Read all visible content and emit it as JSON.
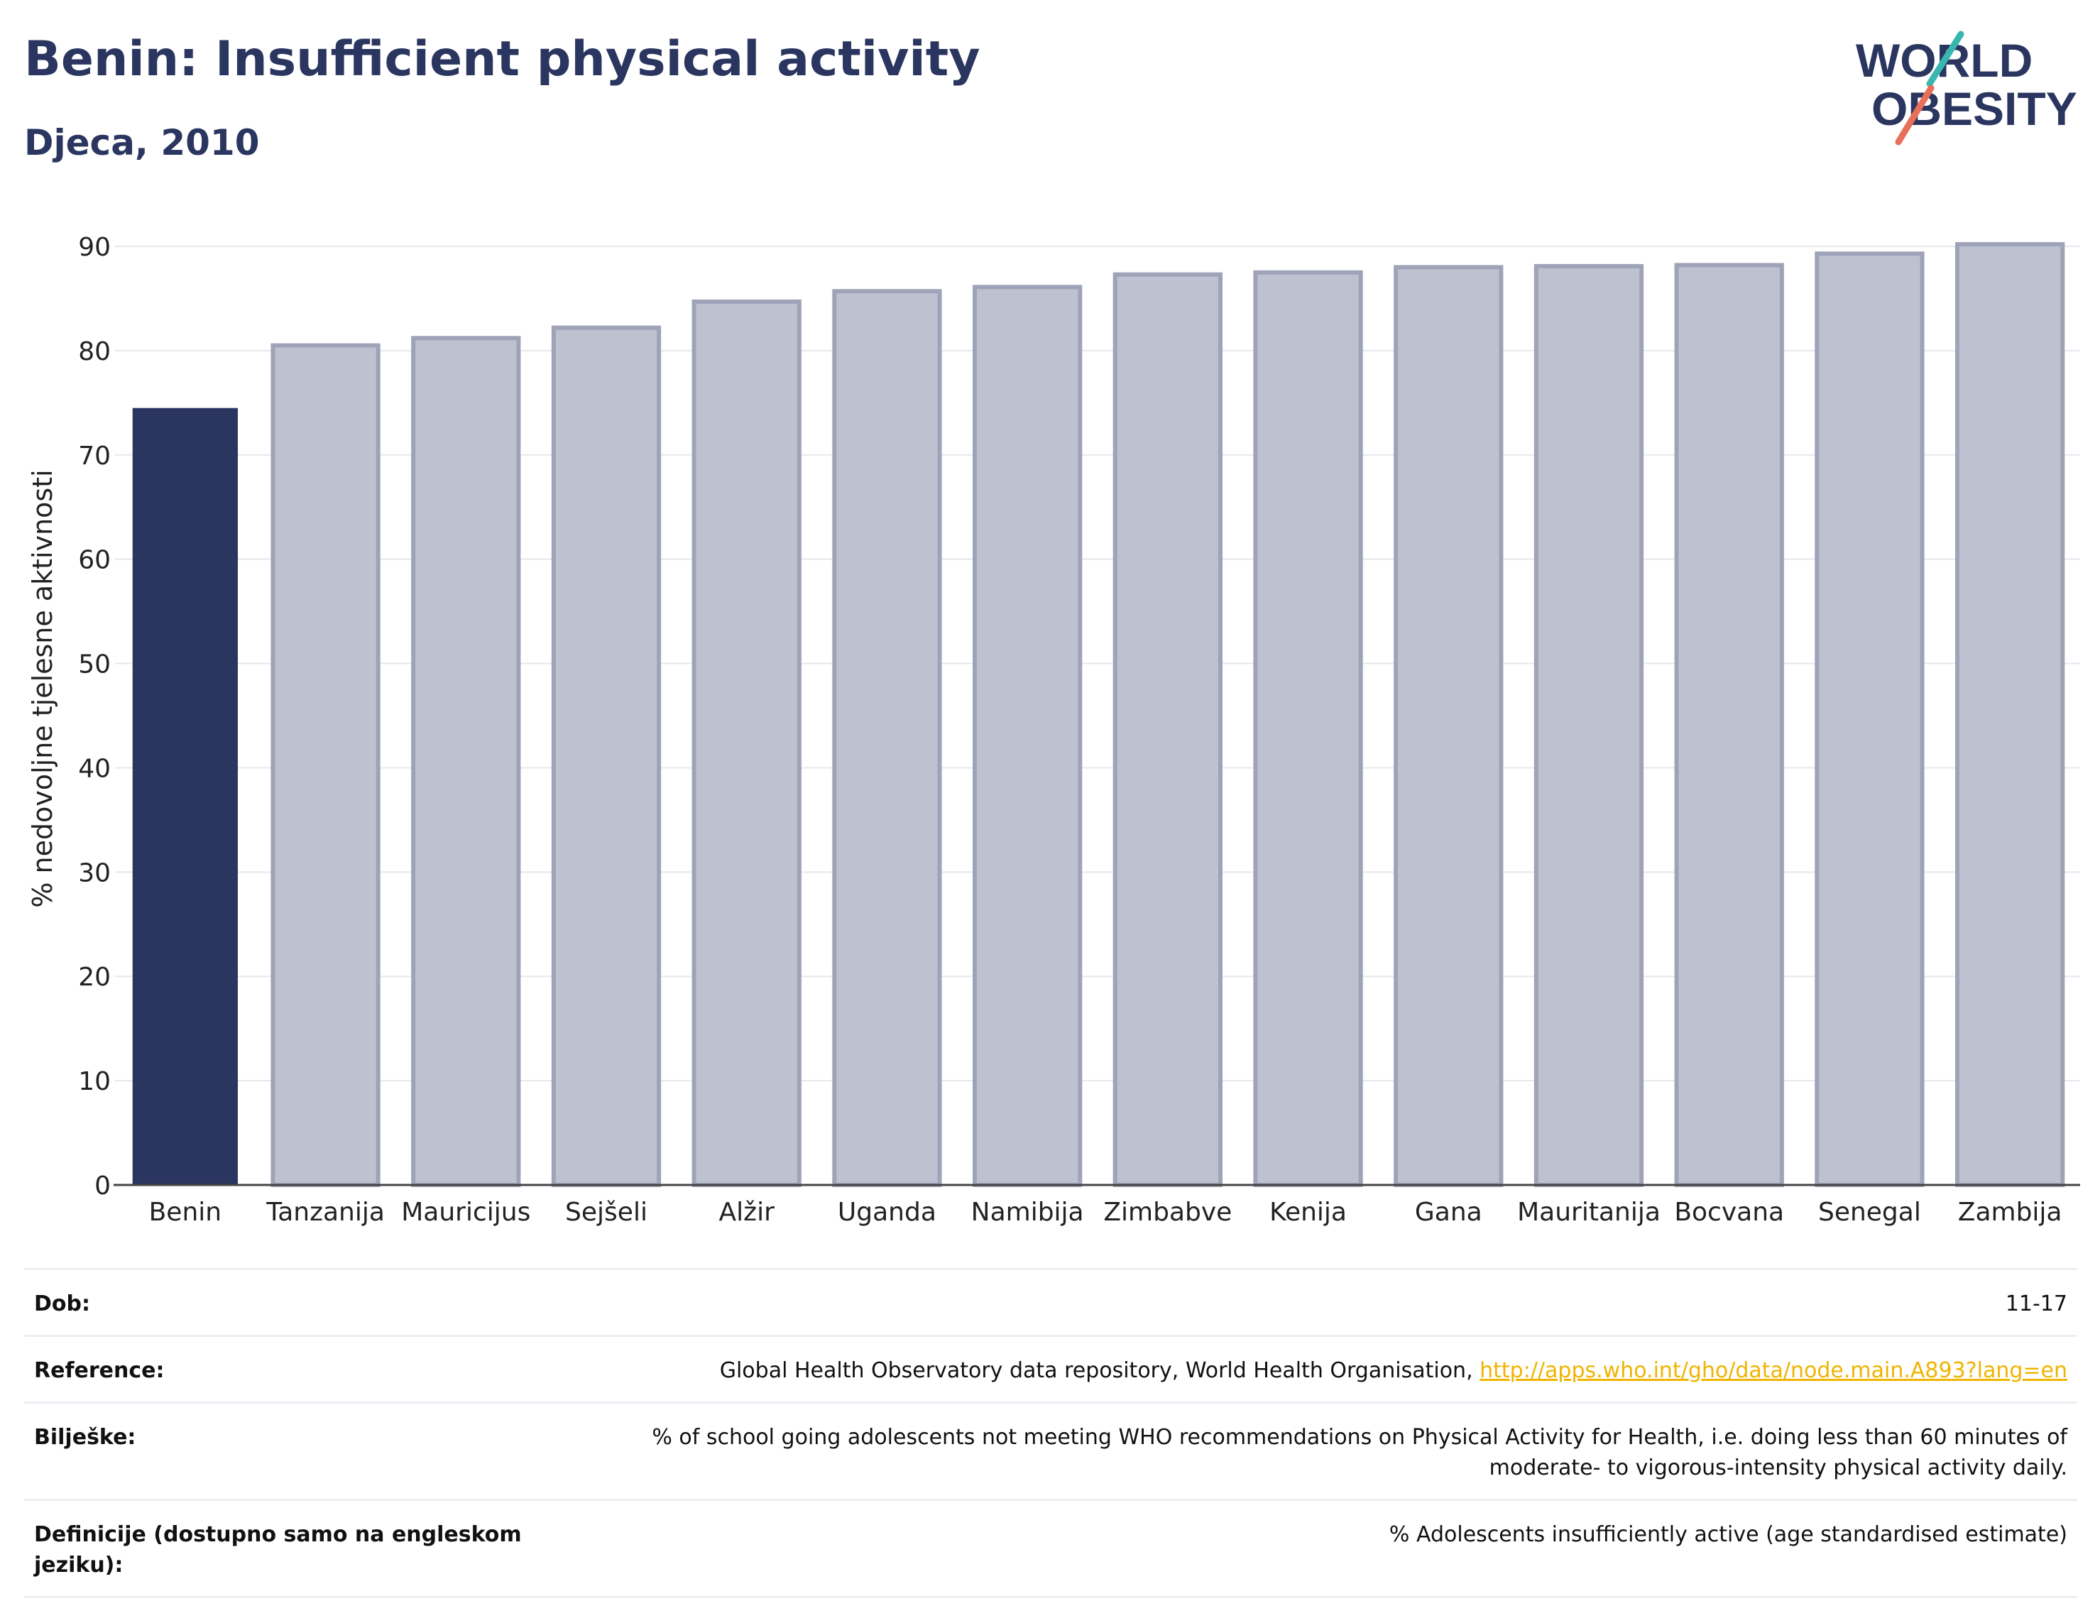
{
  "header": {
    "title": "Benin: Insufficient physical activity",
    "subtitle": "Djeca, 2010",
    "logo_line1": "WORLD",
    "logo_line2": "OBESITY"
  },
  "colors": {
    "highlight_bar": "#2b3660",
    "other_bar": "#bec2d0",
    "other_bar_border": "#9ea3b8",
    "title": "#2b3660",
    "link": "#f0b400",
    "logo_teal": "#38b6b0",
    "logo_coral": "#e8705a"
  },
  "chart_data": {
    "type": "bar",
    "title": "Benin: Insufficient physical activity",
    "subtitle": "Djeca, 2010",
    "xlabel": "",
    "ylabel": "% nedovoljne tjelesne aktivnosti",
    "ylim": [
      0,
      90
    ],
    "yticks": [
      0,
      10,
      20,
      30,
      40,
      50,
      60,
      70,
      80,
      90
    ],
    "grid": true,
    "categories": [
      "Benin",
      "Tanzanija",
      "Mauricijus",
      "Sejšeli",
      "Alžir",
      "Uganda",
      "Namibija",
      "Zimbabve",
      "Kenija",
      "Gana",
      "Mauritanija",
      "Bocvana",
      "Senegal",
      "Zambija"
    ],
    "values": [
      74.5,
      80.5,
      81.2,
      82.2,
      84.7,
      85.7,
      86.1,
      87.3,
      87.5,
      88.0,
      88.1,
      88.2,
      89.3,
      90.2
    ],
    "highlight": "Benin"
  },
  "meta": {
    "rows": [
      {
        "label": "Dob:",
        "value": "11-17"
      },
      {
        "label": "Reference:",
        "value": "Global Health Observatory data repository, World Health Organisation, ",
        "link": "http://apps.who.int/gho/data/node.main.A893?lang=en"
      },
      {
        "label": "Bilješke:",
        "value": "% of school going adolescents not meeting WHO recommendations on Physical Activity for Health, i.e. doing less than 60 minutes of moderate- to vigorous-intensity physical activity daily."
      },
      {
        "label": "Definicije (dostupno samo na engleskom jeziku):",
        "value": "% Adolescents insufficiently active (age standardised estimate)"
      }
    ]
  }
}
